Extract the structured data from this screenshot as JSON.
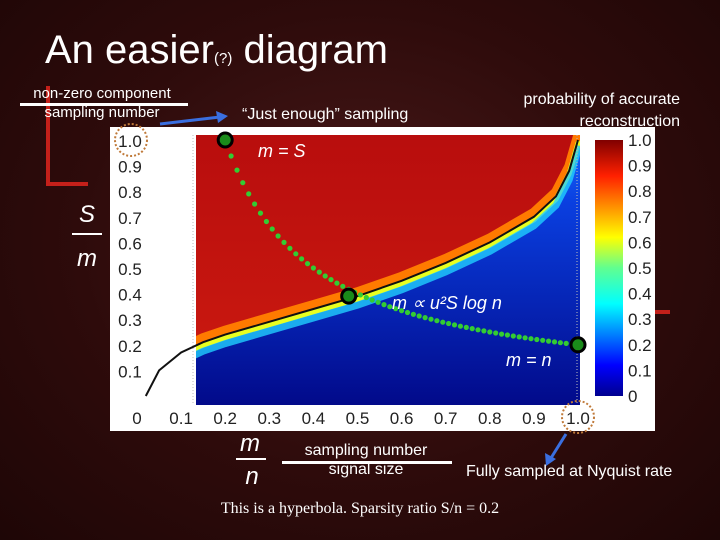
{
  "title": {
    "main": "An easier",
    "question": "(?)",
    "tail": " diagram"
  },
  "annotations": {
    "nonzero_line1": "non-zero component",
    "nonzero_line2": "sampling number",
    "just_enough": "“Just enough” sampling",
    "prob_line1": "probability of accurate",
    "prob_line2": "reconstruction",
    "sampling_number": "sampling number",
    "signal_size": "signal size",
    "full_sampled": "Fully sampled at Nyquist rate",
    "hyperbola_note": "This is a hyperbola. Sparsity ratio S/n = 0.2",
    "m_eq_S": "m = S",
    "m_prop": "m ∝ u²S log n",
    "m_eq_n": "m = n",
    "y_frac_num": "S",
    "y_frac_den": "m",
    "x_frac_num": "m",
    "x_frac_den": "n"
  },
  "colors": {
    "background": "#2e0b0b",
    "highlight": "#c4201a",
    "dots": "#33cc33",
    "arrow": "#3a6fe0",
    "dashed_circle": "#c07a3a"
  },
  "chart_data": {
    "type": "heatmap",
    "x_label": "m/n",
    "y_label": "S/m",
    "x_ticks": [
      "0",
      "0.1",
      "0.2",
      "0.3",
      "0.4",
      "0.5",
      "0.6",
      "0.7",
      "0.8",
      "0.9",
      "1.0"
    ],
    "y_ticks": [
      "0.1",
      "0.2",
      "0.3",
      "0.4",
      "0.5",
      "0.6",
      "0.7",
      "0.8",
      "0.9",
      "1.0"
    ],
    "xlim": [
      0,
      1
    ],
    "ylim": [
      0,
      1
    ],
    "colorbar": {
      "title": "probability of accurate reconstruction",
      "ticks": [
        "0",
        "0.1",
        "0.2",
        "0.3",
        "0.4",
        "0.5",
        "0.6",
        "0.7",
        "0.8",
        "0.9",
        "1.0"
      ],
      "range": [
        0,
        1
      ],
      "colormap": "jet"
    },
    "sparsity_ratio": 0.2,
    "phase_transition_curve": {
      "x": [
        0.02,
        0.05,
        0.1,
        0.15,
        0.2,
        0.3,
        0.4,
        0.5,
        0.6,
        0.7,
        0.8,
        0.9,
        0.95,
        0.98,
        1.0
      ],
      "y": [
        0.0,
        0.1,
        0.17,
        0.21,
        0.24,
        0.29,
        0.34,
        0.39,
        0.45,
        0.52,
        0.6,
        0.7,
        0.78,
        0.88,
        1.0
      ]
    },
    "hyperbola": {
      "x": [
        0.2,
        0.25,
        0.3,
        0.35,
        0.4,
        0.5,
        0.6,
        0.7,
        0.8,
        0.9,
        1.0
      ],
      "y": [
        1.0,
        0.8,
        0.667,
        0.571,
        0.5,
        0.4,
        0.333,
        0.286,
        0.25,
        0.222,
        0.2
      ]
    },
    "marked_points": [
      {
        "x": 0.2,
        "y": 1.0,
        "label": "m = S"
      },
      {
        "x": 0.48,
        "y": 0.39,
        "label": "m ∝ u²S log n"
      },
      {
        "x": 1.0,
        "y": 0.2,
        "label": "m = n"
      }
    ],
    "highlighted_ticks": [
      {
        "axis": "y",
        "value": "1.0"
      },
      {
        "axis": "x",
        "value": "1.0"
      }
    ]
  }
}
